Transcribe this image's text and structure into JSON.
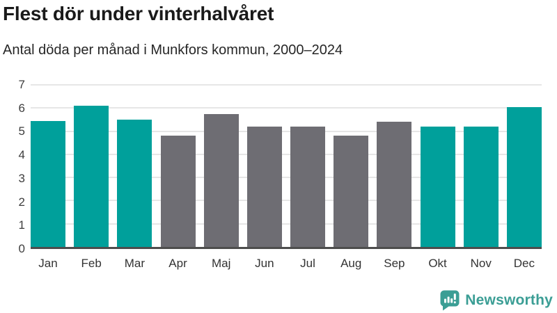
{
  "header": {
    "title": "Flest dör under vinterhalvåret",
    "subtitle": "Antal döda per månad i Munkfors kommun, 2000–2024"
  },
  "chart_data": {
    "type": "bar",
    "title": "Flest dör under vinterhalvåret",
    "subtitle": "Antal döda per månad i Munkfors kommun, 2000–2024",
    "categories": [
      "Jan",
      "Feb",
      "Mar",
      "Apr",
      "Maj",
      "Jun",
      "Jul",
      "Aug",
      "Sep",
      "Okt",
      "Nov",
      "Dec"
    ],
    "values": [
      5.45,
      6.1,
      5.5,
      4.8,
      5.75,
      5.2,
      5.2,
      4.8,
      5.4,
      5.2,
      5.2,
      6.05
    ],
    "bar_seasons": [
      "winter",
      "winter",
      "winter",
      "summer",
      "summer",
      "summer",
      "summer",
      "summer",
      "summer",
      "winter",
      "winter",
      "winter"
    ],
    "colors": {
      "winter": "#00a09b",
      "summer": "#6e6d73"
    },
    "xlabel": "",
    "ylabel": "",
    "ylim": [
      0,
      7
    ],
    "yticks": [
      0,
      1,
      2,
      3,
      4,
      5,
      6,
      7
    ],
    "grid": "horizontal",
    "legend": "none",
    "axis_line_color": "#4d4d4d",
    "gridline_color": "#e6e6e6"
  },
  "footer": {
    "logo_text": "Newsworthy",
    "logo_color": "#3b9e95"
  }
}
